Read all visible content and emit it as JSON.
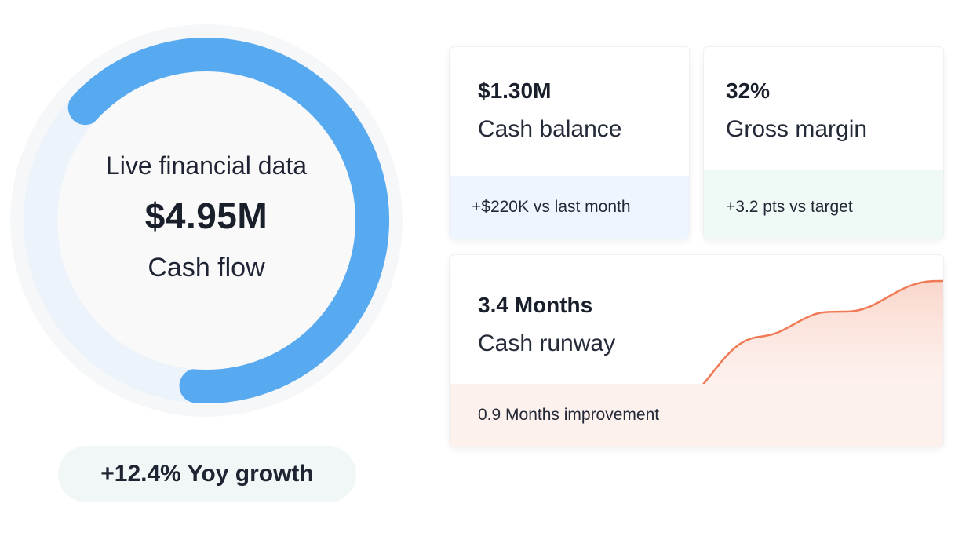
{
  "gauge": {
    "caption": "Live financial data",
    "value": "$4.95M",
    "label": "Cash flow",
    "progress": 0.64,
    "colors": {
      "arc": "#58aaf0",
      "track": "#edf3fa",
      "halo": "#f6f7f8",
      "inner": "#f9f9f9"
    }
  },
  "growth": {
    "text": "+12.4% Yoy growth"
  },
  "cards": {
    "cash_balance": {
      "value": "$1.30M",
      "label": "Cash balance",
      "footer": "+$220K vs last month"
    },
    "gross_margin": {
      "value": "32%",
      "label": "Gross margin",
      "footer": "+3.2 pts vs target"
    },
    "cash_runway": {
      "value": "3.4 Months",
      "label": "Cash runway",
      "footer": "0.9 Months improvement",
      "trend_color": "#f07a55"
    }
  }
}
